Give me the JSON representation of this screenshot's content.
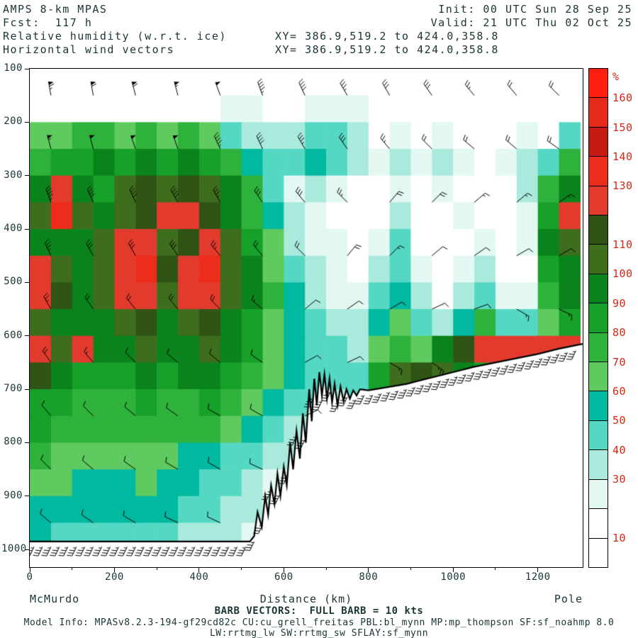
{
  "header": {
    "left": [
      "AMPS 8-km MPAS",
      "Fcst:  117 h",
      "Relative humidity (w.r.t. ice)",
      "Horizontal wind vectors"
    ],
    "right": [
      "Init: 00 UTC Sun 28 Sep 25",
      "Valid: 21 UTC Thu 02 Oct 25"
    ],
    "xy": [
      "XY= 386.9,519.2 to 424.0,358.8",
      "XY= 386.9,519.2 to 424.0,358.8"
    ]
  },
  "footer": {
    "left_station": "McMurdo",
    "right_station": "Pole",
    "xaxis_title": "Distance (km)",
    "barb_note": "BARB VECTORS:  FULL BARB = 10 kts",
    "model_info_1": "Model Info: MPASv8.2.3-194-gf29cd82c CU:cu_grell_freitas PBL:bl_mynn MP:mp_thompson SF:sf_noahmp 8.0",
    "model_info_2": "LW:rrtmg_lw SW:rrtmg_sw SFLAY:sf_mynn"
  },
  "axes": {
    "y_ticks": [
      100,
      200,
      300,
      400,
      500,
      600,
      700,
      800,
      900,
      1000
    ],
    "x_ticks": [
      0,
      200,
      400,
      600,
      800,
      1000,
      1200
    ],
    "x_ticks_minor": [
      100,
      300,
      500,
      700,
      900,
      1100,
      1300
    ]
  },
  "colorbar": {
    "unit": "%",
    "levels": [
      10,
      20,
      30,
      40,
      50,
      60,
      70,
      80,
      90,
      100,
      110,
      120,
      130,
      140,
      150,
      160
    ],
    "values_labeled": [
      160,
      150,
      140,
      130,
      110,
      100,
      90,
      80,
      70,
      60,
      50,
      40,
      30,
      10
    ],
    "colors": [
      "#ffffff",
      "#ffffff",
      "#e4f8f3",
      "#aaeadd",
      "#55d8c3",
      "#00b9a0",
      "#5fca5f",
      "#2fb23b",
      "#17a02a",
      "#0b831c",
      "#3f6d1e",
      "#2f5415",
      "#e23b2e",
      "#ee2c1c",
      "#c41a12",
      "#e62a1a",
      "#ff1f10"
    ]
  },
  "chart_data": {
    "type": "heatmap",
    "title": "Relative humidity (w.r.t. ice) cross-section McMurdo to Pole with horizontal wind vectors",
    "x_range_km": [
      0,
      1306
    ],
    "p_range_hpa": [
      100,
      1033
    ],
    "x_centers_km": [
      25,
      75,
      125,
      175,
      225,
      275,
      325,
      375,
      425,
      475,
      525,
      575,
      625,
      675,
      725,
      775,
      825,
      875,
      925,
      975,
      1025,
      1075,
      1125,
      1175,
      1225,
      1275
    ],
    "p_centers_hpa": [
      125,
      175,
      225,
      275,
      325,
      375,
      425,
      475,
      525,
      575,
      625,
      675,
      725,
      775,
      825,
      875,
      925,
      975,
      1025
    ],
    "rh_percent_grid": [
      [
        5,
        5,
        5,
        5,
        5,
        5,
        5,
        5,
        5,
        12,
        12,
        5,
        5,
        15,
        15,
        5,
        5,
        5,
        5,
        5,
        5,
        5,
        5,
        5,
        5,
        5
      ],
      [
        5,
        5,
        5,
        5,
        5,
        5,
        5,
        5,
        15,
        25,
        25,
        15,
        5,
        25,
        28,
        25,
        8,
        5,
        5,
        15,
        5,
        5,
        5,
        5,
        5,
        5
      ],
      [
        62,
        68,
        72,
        70,
        65,
        72,
        68,
        75,
        60,
        45,
        38,
        32,
        35,
        45,
        40,
        30,
        18,
        25,
        15,
        28,
        18,
        8,
        15,
        25,
        15,
        45
      ],
      [
        75,
        82,
        88,
        92,
        85,
        95,
        88,
        92,
        85,
        72,
        55,
        48,
        42,
        55,
        48,
        35,
        28,
        38,
        20,
        32,
        25,
        12,
        20,
        35,
        45,
        75
      ],
      [
        95,
        125,
        98,
        88,
        105,
        112,
        108,
        115,
        105,
        95,
        70,
        45,
        25,
        35,
        28,
        15,
        8,
        25,
        12,
        20,
        15,
        8,
        12,
        30,
        70,
        95
      ],
      [
        100,
        130,
        105,
        95,
        108,
        112,
        125,
        128,
        115,
        98,
        75,
        50,
        30,
        25,
        18,
        10,
        18,
        30,
        8,
        15,
        22,
        10,
        8,
        25,
        85,
        125
      ],
      [
        92,
        98,
        95,
        105,
        128,
        125,
        108,
        112,
        125,
        105,
        85,
        60,
        38,
        20,
        25,
        12,
        25,
        40,
        15,
        10,
        18,
        25,
        12,
        20,
        95,
        108
      ],
      [
        122,
        105,
        98,
        108,
        125,
        132,
        112,
        128,
        132,
        108,
        92,
        68,
        45,
        30,
        20,
        15,
        35,
        45,
        20,
        12,
        25,
        35,
        18,
        15,
        88,
        98
      ],
      [
        128,
        112,
        95,
        102,
        125,
        128,
        105,
        125,
        128,
        102,
        95,
        72,
        52,
        38,
        28,
        20,
        42,
        55,
        30,
        18,
        35,
        48,
        25,
        22,
        75,
        92
      ],
      [
        108,
        98,
        92,
        95,
        108,
        112,
        98,
        105,
        112,
        95,
        88,
        68,
        55,
        42,
        35,
        30,
        55,
        65,
        45,
        35,
        55,
        70,
        45,
        40,
        65,
        85
      ],
      [
        125,
        102,
        125,
        95,
        98,
        102,
        95,
        98,
        105,
        92,
        85,
        65,
        58,
        48,
        40,
        38,
        68,
        78,
        60,
        95,
        118,
        125,
        122,
        128,
        125,
        122
      ],
      [
        118,
        95,
        88,
        85,
        88,
        92,
        88,
        92,
        95,
        85,
        78,
        60,
        52,
        45,
        42,
        45,
        85,
        105,
        112,
        108,
        95,
        88,
        85,
        80,
        78,
        75
      ],
      [
        88,
        82,
        78,
        75,
        78,
        82,
        75,
        78,
        82,
        72,
        65,
        50,
        45,
        40,
        38,
        40,
        60,
        70,
        55,
        50,
        45,
        40,
        38,
        35,
        32,
        30
      ],
      [
        80,
        75,
        72,
        70,
        72,
        75,
        70,
        72,
        75,
        65,
        58,
        45,
        38,
        35,
        32,
        35,
        45,
        50,
        40,
        38,
        35,
        32,
        30,
        28,
        25,
        22
      ],
      [
        72,
        68,
        65,
        62,
        65,
        68,
        62,
        58,
        55,
        48,
        42,
        35,
        30,
        28,
        25,
        28,
        35,
        38,
        30,
        28,
        25,
        22,
        20,
        18,
        15,
        12
      ],
      [
        65,
        62,
        58,
        55,
        58,
        62,
        55,
        50,
        45,
        40,
        35,
        28,
        25,
        22,
        20,
        22,
        28,
        30,
        25,
        22,
        20,
        18,
        15,
        12,
        10,
        8
      ],
      [
        58,
        55,
        52,
        50,
        52,
        55,
        50,
        45,
        40,
        35,
        30,
        25,
        20,
        18,
        15,
        18,
        22,
        25,
        20,
        18,
        15,
        12,
        10,
        8,
        5,
        5
      ],
      [
        50,
        48,
        45,
        42,
        45,
        48,
        42,
        38,
        35,
        30,
        25,
        20,
        15,
        12,
        10,
        12,
        18,
        20,
        15,
        12,
        10,
        8,
        5,
        5,
        5,
        5
      ],
      [
        25,
        22,
        20,
        18,
        20,
        22,
        18,
        15,
        12,
        10,
        8,
        5,
        5,
        5,
        5,
        5,
        5,
        5,
        5,
        5,
        5,
        5,
        5,
        5,
        5,
        5
      ]
    ],
    "terrain_profile_km_hpa": [
      [
        0,
        985
      ],
      [
        520,
        985
      ],
      [
        530,
        975
      ],
      [
        538,
        930
      ],
      [
        548,
        958
      ],
      [
        556,
        900
      ],
      [
        563,
        935
      ],
      [
        570,
        880
      ],
      [
        578,
        915
      ],
      [
        585,
        858
      ],
      [
        592,
        900
      ],
      [
        600,
        845
      ],
      [
        607,
        880
      ],
      [
        615,
        800
      ],
      [
        622,
        850
      ],
      [
        630,
        778
      ],
      [
        638,
        830
      ],
      [
        645,
        745
      ],
      [
        652,
        800
      ],
      [
        660,
        700
      ],
      [
        666,
        760
      ],
      [
        672,
        680
      ],
      [
        678,
        730
      ],
      [
        684,
        668
      ],
      [
        690,
        712
      ],
      [
        696,
        672
      ],
      [
        702,
        718
      ],
      [
        708,
        680
      ],
      [
        714,
        725
      ],
      [
        720,
        690
      ],
      [
        727,
        730
      ],
      [
        734,
        695
      ],
      [
        741,
        722
      ],
      [
        748,
        700
      ],
      [
        756,
        718
      ],
      [
        764,
        702
      ],
      [
        772,
        712
      ],
      [
        780,
        700
      ],
      [
        800,
        702
      ],
      [
        830,
        698
      ],
      [
        860,
        694
      ],
      [
        890,
        690
      ],
      [
        920,
        684
      ],
      [
        950,
        678
      ],
      [
        980,
        672
      ],
      [
        1010,
        666
      ],
      [
        1050,
        658
      ],
      [
        1100,
        650
      ],
      [
        1150,
        642
      ],
      [
        1200,
        634
      ],
      [
        1250,
        624
      ],
      [
        1306,
        615
      ]
    ],
    "wind": {
      "x_km": [
        50,
        150,
        250,
        350,
        450,
        550,
        650,
        750,
        850,
        950,
        1050,
        1150,
        1250
      ],
      "p_levels_hpa": [
        150,
        250,
        350,
        450,
        550,
        650,
        750,
        850,
        950
      ],
      "speed_kt": [
        [
          65,
          60,
          58,
          55,
          50,
          45,
          40,
          35,
          30,
          28,
          25,
          22,
          20
        ],
        [
          55,
          52,
          50,
          48,
          45,
          40,
          35,
          30,
          25,
          22,
          20,
          18,
          18
        ],
        [
          45,
          42,
          40,
          38,
          35,
          32,
          28,
          25,
          20,
          18,
          15,
          15,
          15
        ],
        [
          35,
          32,
          30,
          28,
          25,
          22,
          20,
          18,
          15,
          12,
          12,
          10,
          10
        ],
        [
          25,
          22,
          20,
          18,
          18,
          15,
          12,
          10,
          10,
          10,
          12,
          15,
          15
        ],
        [
          18,
          15,
          12,
          12,
          10,
          10,
          10,
          12,
          15,
          25,
          30,
          35,
          40
        ],
        [
          12,
          10,
          10,
          8,
          8,
          10,
          12,
          15,
          0,
          0,
          0,
          0,
          0
        ],
        [
          10,
          8,
          8,
          8,
          10,
          12,
          0,
          0,
          0,
          0,
          0,
          0,
          0
        ],
        [
          12,
          10,
          8,
          8,
          10,
          15,
          0,
          0,
          0,
          0,
          0,
          0,
          0
        ]
      ],
      "dir_from_deg": [
        [
          350,
          350,
          345,
          345,
          340,
          340,
          335,
          330,
          330,
          325,
          320,
          320,
          315
        ],
        [
          345,
          345,
          340,
          340,
          335,
          335,
          330,
          325,
          320,
          315,
          310,
          310,
          305
        ],
        [
          340,
          335,
          335,
          330,
          330,
          325,
          320,
          315,
          40,
          45,
          50,
          50,
          55
        ],
        [
          335,
          330,
          330,
          325,
          320,
          320,
          315,
          40,
          45,
          50,
          55,
          60,
          60
        ],
        [
          330,
          325,
          320,
          320,
          315,
          310,
          50,
          55,
          60,
          65,
          70,
          120,
          115
        ],
        [
          325,
          320,
          315,
          310,
          310,
          305,
          60,
          65,
          120,
          125,
          130,
          130,
          125
        ],
        [
          320,
          315,
          310,
          305,
          300,
          300,
          65,
          70,
          0,
          0,
          0,
          0,
          0
        ],
        [
          315,
          310,
          305,
          300,
          300,
          295,
          0,
          0,
          0,
          0,
          0,
          0,
          0
        ],
        [
          310,
          305,
          300,
          295,
          295,
          290,
          0,
          0,
          0,
          0,
          0,
          0,
          0
        ]
      ],
      "surface": {
        "start_km": 10,
        "end_km": 1300,
        "step_km": 20,
        "speed_kt": 35,
        "dir_deg": 205
      }
    }
  }
}
